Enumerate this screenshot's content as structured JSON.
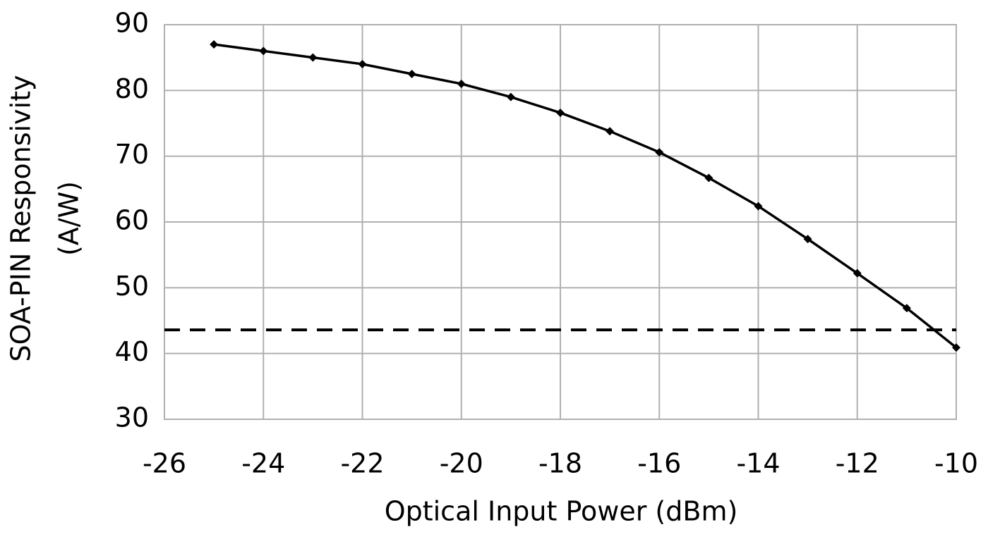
{
  "chart_data": {
    "type": "line",
    "xlabel": "Optical Input Power (dBm)",
    "ylabel": [
      "SOA-PIN Responsivity",
      "(A/W)"
    ],
    "x": [
      -25,
      -24,
      -23,
      -22,
      -21,
      -20,
      -19,
      -18,
      -17,
      -16,
      -15,
      -14,
      -13,
      -12,
      -11,
      -10
    ],
    "series": [
      {
        "color": "#000000",
        "values": [
          87,
          86,
          85,
          84,
          82.5,
          81,
          79,
          76.6,
          73.8,
          70.6,
          66.7,
          62.4,
          57.4,
          52.2,
          46.9,
          40.9
        ]
      }
    ],
    "hline": {
      "value": 43.6,
      "style": "dashed",
      "color": "#000000"
    },
    "xlim": [
      -26,
      -10
    ],
    "xticks": [
      -26,
      -24,
      -22,
      -20,
      -18,
      -16,
      -14,
      -12,
      -10
    ],
    "ylim": [
      30,
      90
    ],
    "yticks": [
      30,
      40,
      50,
      60,
      70,
      80,
      90
    ],
    "grid": true
  }
}
